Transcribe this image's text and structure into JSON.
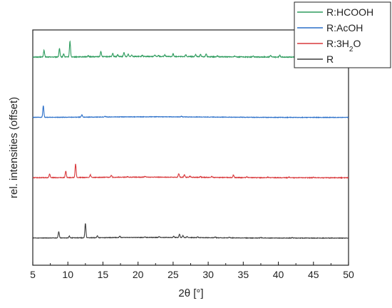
{
  "chart_data": {
    "type": "line",
    "title": "",
    "xlabel": "2θ [°]",
    "ylabel": "rel. intensities (offset)",
    "xlim": [
      5,
      50
    ],
    "xticks": [
      5,
      10,
      15,
      20,
      25,
      30,
      35,
      40,
      45,
      50
    ],
    "xtick_labels": [
      "5",
      "10",
      "15",
      "20",
      "25",
      "30",
      "35",
      "40",
      "45",
      "50"
    ],
    "yticks_labeled": false,
    "grid": false,
    "legend": {
      "placement": "top-right",
      "entries": [
        {
          "label": "R:HCOOH",
          "subscript": "",
          "suffix": "",
          "color": "#2e9c5e"
        },
        {
          "label": "R:AcOH",
          "subscript": "",
          "suffix": "",
          "color": "#2a6fc9"
        },
        {
          "label": "R:3H",
          "subscript": "2",
          "suffix": "O",
          "color": "#d9393c"
        },
        {
          "label": "R",
          "subscript": "",
          "suffix": "",
          "color": "#3d3d3d"
        }
      ]
    },
    "series": [
      {
        "name": "R:HCOOH",
        "color": "#2e9c5e",
        "baseline": 3.0,
        "noise": 0.006,
        "peaks": [
          [
            6.6,
            0.11
          ],
          [
            8.8,
            0.14
          ],
          [
            9.4,
            0.05
          ],
          [
            10.3,
            0.255
          ],
          [
            12.9,
            0.02
          ],
          [
            14.7,
            0.09
          ],
          [
            16.4,
            0.055
          ],
          [
            17.1,
            0.03
          ],
          [
            18.0,
            0.07
          ],
          [
            18.6,
            0.04
          ],
          [
            19.1,
            0.03
          ],
          [
            20.6,
            0.02
          ],
          [
            22.4,
            0.025
          ],
          [
            22.9,
            0.02
          ],
          [
            23.8,
            0.03
          ],
          [
            25.0,
            0.045
          ],
          [
            26.8,
            0.03
          ],
          [
            28.2,
            0.035
          ],
          [
            28.9,
            0.04
          ],
          [
            29.7,
            0.05
          ],
          [
            31.3,
            0.015
          ],
          [
            33.8,
            0.015
          ],
          [
            36.4,
            0.015
          ],
          [
            38.9,
            0.03
          ],
          [
            40.2,
            0.03
          ],
          [
            43.5,
            0.01
          ],
          [
            45.6,
            0.01
          ],
          [
            49.0,
            0.01
          ]
        ]
      },
      {
        "name": "R:AcOH",
        "color": "#2a6fc9",
        "baseline": 2.0,
        "noise": 0.004,
        "peaks": [
          [
            6.5,
            0.195
          ],
          [
            12.0,
            0.04
          ],
          [
            15.3,
            0.012
          ],
          [
            26.2,
            0.012
          ]
        ]
      },
      {
        "name": "R:3H2O",
        "color": "#d9393c",
        "baseline": 1.0,
        "noise": 0.005,
        "peaks": [
          [
            7.4,
            0.06
          ],
          [
            9.7,
            0.11
          ],
          [
            11.1,
            0.225
          ],
          [
            13.2,
            0.045
          ],
          [
            16.2,
            0.035
          ],
          [
            18.5,
            0.01
          ],
          [
            21.0,
            0.012
          ],
          [
            25.8,
            0.06
          ],
          [
            26.6,
            0.045
          ],
          [
            27.4,
            0.02
          ],
          [
            28.9,
            0.015
          ],
          [
            30.5,
            0.015
          ],
          [
            33.6,
            0.045
          ],
          [
            35.5,
            0.012
          ],
          [
            38.5,
            0.01
          ],
          [
            41.5,
            0.01
          ],
          [
            45.0,
            0.008
          ]
        ]
      },
      {
        "name": "R",
        "color": "#3d3d3d",
        "baseline": 0.0,
        "noise": 0.004,
        "peaks": [
          [
            8.7,
            0.105
          ],
          [
            10.2,
            0.03
          ],
          [
            12.5,
            0.24
          ],
          [
            14.2,
            0.03
          ],
          [
            17.4,
            0.025
          ],
          [
            21.0,
            0.01
          ],
          [
            23.0,
            0.015
          ],
          [
            25.1,
            0.02
          ],
          [
            25.9,
            0.055
          ],
          [
            26.4,
            0.03
          ],
          [
            27.0,
            0.02
          ],
          [
            28.5,
            0.015
          ],
          [
            31.0,
            0.012
          ],
          [
            33.0,
            0.01
          ],
          [
            37.5,
            0.01
          ],
          [
            42.0,
            0.008
          ]
        ]
      }
    ]
  }
}
